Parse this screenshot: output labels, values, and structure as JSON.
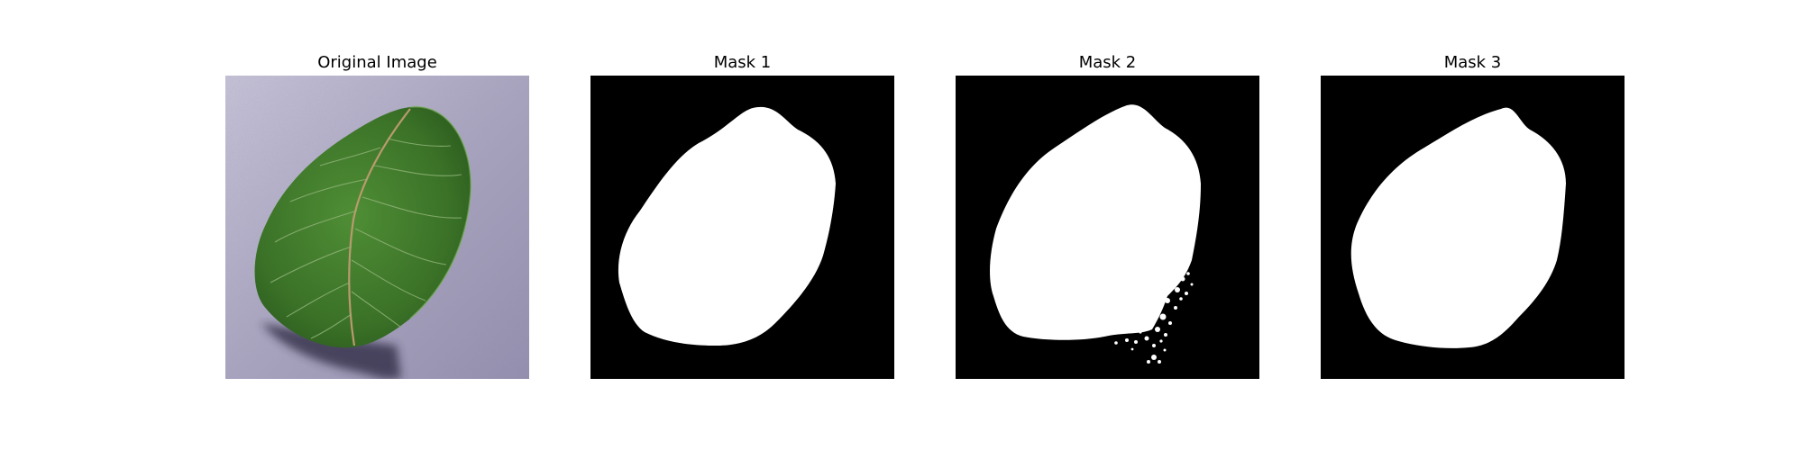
{
  "figure": {
    "panels": [
      {
        "title": "Original Image"
      },
      {
        "title": "Mask 1"
      },
      {
        "title": "Mask 2"
      },
      {
        "title": "Mask 3"
      }
    ]
  },
  "colors": {
    "background_surface": "#a9a5bf",
    "leaf_green": "#3f7a2c",
    "mask_background": "#000000",
    "mask_foreground": "#ffffff"
  }
}
